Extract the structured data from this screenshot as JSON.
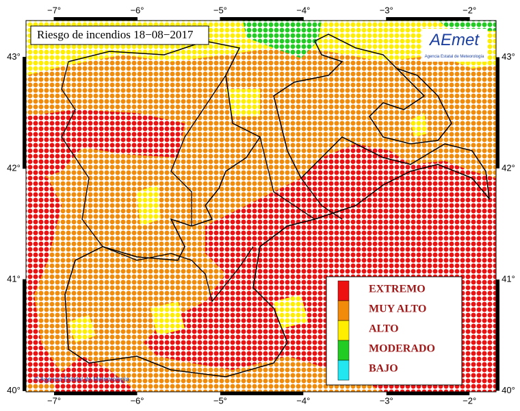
{
  "title": "Riesgo de incendios 18−08−2017",
  "logo": {
    "name": "AEmet",
    "subtitle": "Agencia Estatal de Meteorología"
  },
  "copyright": "© Agencia Estatal de Meteorología",
  "map": {
    "xlim": [
      -7.338,
      -1.68
    ],
    "ylim": [
      39.99,
      43.33
    ],
    "xticks": [
      {
        "value": -7,
        "label": "−7°"
      },
      {
        "value": -6,
        "label": "−6°"
      },
      {
        "value": -5,
        "label": "−5°"
      },
      {
        "value": -4,
        "label": "−4°"
      },
      {
        "value": -3,
        "label": "−3°"
      },
      {
        "value": -2,
        "label": "−2°"
      }
    ],
    "yticks": [
      {
        "value": 43,
        "label": "43°"
      },
      {
        "value": 42,
        "label": "42°"
      },
      {
        "value": 41,
        "label": "41°"
      },
      {
        "value": 40,
        "label": "40°"
      }
    ]
  },
  "legend": [
    {
      "label": "EXTREMO",
      "color": "#ee1111"
    },
    {
      "label": "MUY ALTO",
      "color": "#f28a0a"
    },
    {
      "label": "ALTO",
      "color": "#ffee00"
    },
    {
      "label": "MODERADO",
      "color": "#22cc22"
    },
    {
      "label": "BAJO",
      "color": "#22e6f0"
    }
  ]
}
